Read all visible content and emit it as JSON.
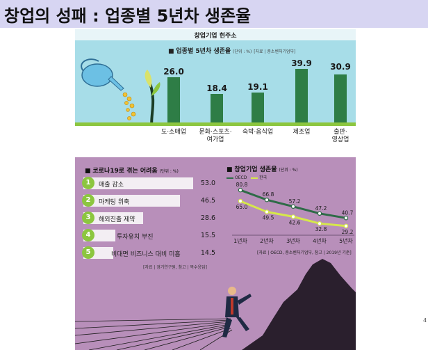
{
  "slide": {
    "title": "창업의 성패 : 업종별 5년차 생존율"
  },
  "infographic": {
    "header": "창업기업 현주소",
    "colors": {
      "bar": "#2e7d46",
      "accent_green": "#8cc63f",
      "oecd_line": "#2e6b47",
      "korea_line": "#d6e84a",
      "top_bg": "#a7dde8",
      "bottom_bg": "#b88fba"
    }
  },
  "top_chart": {
    "title_prefix": "■",
    "title": "업종별 5년차 생존율",
    "unit": "(단위 : %)",
    "source": "[자료 | 중소벤처기업부]"
  },
  "left_chart": {
    "title_prefix": "■",
    "title": "코로나19로 겪는 어려움",
    "unit": "(단위 : %)",
    "source": "[자료 | 경기연구원, 참고 | 복수응답]"
  },
  "right_chart": {
    "title_prefix": "■",
    "title": "창업기업 생존율",
    "unit": "(단위 : %)",
    "legend": [
      "OECD",
      "한국"
    ],
    "source": "[자료 | OECD, 중소벤처기업부, 참고 | 2019년 기준]"
  },
  "chart_data": [
    {
      "type": "bar",
      "title": "업종별 5년차 생존율",
      "categories": [
        "도·소매업",
        "문화·스포츠·\n여가업",
        "숙박·음식업",
        "제조업",
        "출판·\n영상업"
      ],
      "values": [
        26.0,
        18.4,
        19.1,
        39.9,
        30.9
      ],
      "value_labels": [
        "26.0",
        "18.4",
        "19.1",
        "39.9",
        "30.9"
      ],
      "ylim": [
        0,
        45
      ]
    },
    {
      "type": "bar",
      "orientation": "horizontal",
      "title": "코로나19로 겪는 어려움",
      "ranks": [
        "1",
        "2",
        "3",
        "4",
        "5"
      ],
      "categories": [
        "매출 감소",
        "마케팅 위축",
        "해외진출 제약",
        "투자유치 부진",
        "비대면 비즈니스 대비 미흡"
      ],
      "values": [
        53.0,
        46.5,
        28.6,
        15.5,
        14.5
      ],
      "value_labels": [
        "53.0",
        "46.5",
        "28.6",
        "15.5",
        "14.5"
      ],
      "xlim": [
        0,
        60
      ]
    },
    {
      "type": "line",
      "title": "창업기업 생존율",
      "x": [
        "1년차",
        "2년차",
        "3년차",
        "4년차",
        "5년차"
      ],
      "series": [
        {
          "name": "OECD",
          "values": [
            80.8,
            66.8,
            57.2,
            47.2,
            40.7
          ],
          "labels": [
            "80.8",
            "66.8",
            "57.2",
            "47.2",
            "40.7"
          ]
        },
        {
          "name": "한국",
          "values": [
            65.0,
            49.5,
            42.6,
            32.8,
            29.2
          ],
          "labels": [
            "65.0",
            "49.5",
            "42.6",
            "32.8",
            "29.2"
          ]
        }
      ],
      "ylim": [
        20,
        90
      ]
    }
  ],
  "page_marker": "4"
}
